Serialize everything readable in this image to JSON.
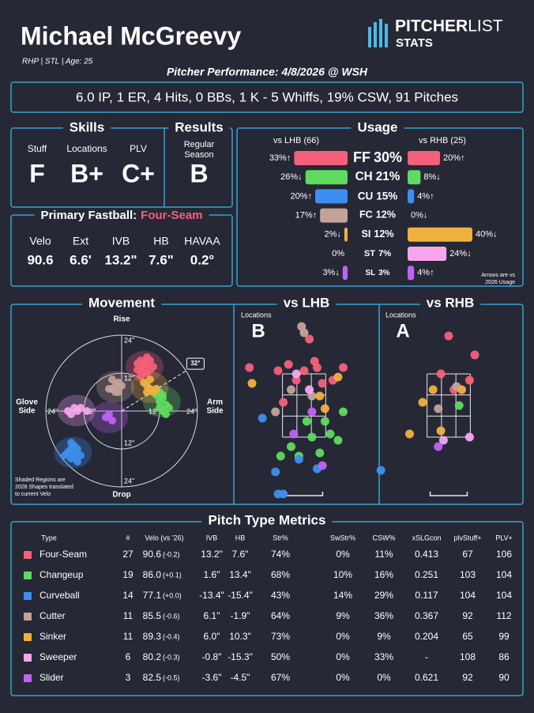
{
  "header": {
    "name": "Michael McGreevy",
    "bio": "RHP | STL | Age: 25",
    "logo_main": "PITCHER",
    "logo_light": "LIST",
    "logo_sub": "STATS"
  },
  "performance": {
    "title": "Pitcher Performance: 4/8/2026 @ WSH",
    "line": "6.0 IP, 1 ER, 4 Hits, 0 BBs, 1 K - 5 Whiffs, 19% CSW, 91 Pitches"
  },
  "skills": {
    "title": "Skills",
    "grades": [
      {
        "label": "Stuff",
        "grade": "F",
        "color": "#5ec8ee"
      },
      {
        "label": "Locations",
        "grade": "B+",
        "color": "#f4a0a8"
      },
      {
        "label": "PLV",
        "grade": "C+",
        "color": "#ffffff"
      }
    ]
  },
  "results": {
    "title": "Results",
    "label": [
      "Regular",
      "Season"
    ],
    "grade": "B",
    "color": "#f4a0a8"
  },
  "fastball": {
    "title": "Primary Fastball:",
    "pitch": "Four-Seam",
    "pitch_color": "#f4607a",
    "value_color": "#a8d8f0",
    "stats": [
      {
        "label": "Velo",
        "value": "90.6"
      },
      {
        "label": "Ext",
        "value": "6.6'"
      },
      {
        "label": "IVB",
        "value": "13.2\""
      },
      {
        "label": "HB",
        "value": "7.6\""
      },
      {
        "label": "HAVAA",
        "value": "0.2°"
      }
    ]
  },
  "usage": {
    "title": "Usage",
    "lhb_title": "vs LHB (66)",
    "rhb_title": "vs RHB (25)",
    "note": [
      "Arrows are vs",
      "2026 Usage"
    ],
    "rows": [
      {
        "abbr": "FF",
        "usage": 30,
        "usage_label": "30%",
        "lhb": 33,
        "lhb_label": "33%↑",
        "rhb": 20,
        "rhb_label": "20%↑"
      },
      {
        "abbr": "CH",
        "usage": 21,
        "usage_label": "21%",
        "lhb": 26,
        "lhb_label": "26%↓",
        "rhb": 8,
        "rhb_label": "8%↓"
      },
      {
        "abbr": "CU",
        "usage": 15,
        "usage_label": "15%",
        "lhb": 20,
        "lhb_label": "20%↑",
        "rhb": 4,
        "rhb_label": "4%↑"
      },
      {
        "abbr": "FC",
        "usage": 12,
        "usage_label": "12%",
        "lhb": 17,
        "lhb_label": "17%↑",
        "rhb": 0,
        "rhb_label": "0%↓"
      },
      {
        "abbr": "SI",
        "usage": 12,
        "usage_label": "12%",
        "lhb": 2,
        "lhb_label": "2%↓",
        "rhb": 40,
        "rhb_label": "40%↓"
      },
      {
        "abbr": "ST",
        "usage": 7,
        "usage_label": "7%",
        "lhb": 0,
        "lhb_label": "0%",
        "rhb": 24,
        "rhb_label": "24%↓"
      },
      {
        "abbr": "SL",
        "usage": 3,
        "usage_label": "3%",
        "lhb": 3,
        "lhb_label": "3%↓",
        "rhb": 4,
        "rhb_label": "4%↑"
      }
    ]
  },
  "movement": {
    "title": "Movement",
    "rise": "Rise",
    "drop": "Drop",
    "glove": [
      "Glove",
      "Side"
    ],
    "arm": [
      "Arm",
      "Side"
    ],
    "note": [
      "Shaded Regions are",
      "2026 Shapes translated",
      "to current Velo"
    ],
    "ticks": [
      {
        "value": 12,
        "label": "12\""
      },
      {
        "value": 24,
        "label": "24\""
      }
    ],
    "angle": {
      "value": 32,
      "label": "32°"
    },
    "points": [
      [
        [
          5,
          15
        ],
        [
          6,
          16
        ],
        [
          7,
          14
        ],
        [
          8,
          15
        ],
        [
          9,
          13
        ],
        [
          7,
          12
        ],
        [
          6,
          13
        ],
        [
          8,
          17
        ],
        [
          10,
          14
        ],
        [
          5,
          13
        ],
        [
          9,
          16
        ],
        [
          7,
          15
        ],
        [
          6,
          11
        ],
        [
          8,
          12
        ]
      ],
      [
        [
          11,
          7
        ],
        [
          12,
          6
        ],
        [
          13,
          4
        ],
        [
          14,
          2
        ],
        [
          12,
          3
        ],
        [
          13,
          0
        ],
        [
          15,
          1
        ],
        [
          14,
          -1
        ],
        [
          11,
          5
        ],
        [
          13,
          5
        ],
        [
          12,
          1
        ]
      ],
      [
        [
          -16,
          -12
        ],
        [
          -15,
          -14
        ],
        [
          -17,
          -13
        ],
        [
          -14,
          -12
        ],
        [
          -16,
          -15
        ],
        [
          -13,
          -14
        ],
        [
          -15,
          -11
        ],
        [
          -18,
          -14
        ],
        [
          -14,
          -16
        ],
        [
          -16,
          -10
        ]
      ],
      [
        [
          -2,
          8
        ],
        [
          -3,
          7
        ],
        [
          -1,
          9
        ],
        [
          -2,
          6
        ],
        [
          -4,
          7
        ],
        [
          -1,
          6
        ],
        [
          -3,
          10
        ],
        [
          0,
          8
        ]
      ],
      [
        [
          8,
          8
        ],
        [
          9,
          7
        ],
        [
          10,
          6
        ],
        [
          9,
          10
        ],
        [
          11,
          7
        ],
        [
          8,
          6
        ],
        [
          7,
          9
        ]
      ],
      [
        [
          -15,
          1
        ],
        [
          -14,
          0
        ],
        [
          -16,
          -1
        ],
        [
          -13,
          1
        ],
        [
          -11,
          0
        ],
        [
          -17,
          0
        ]
      ],
      [
        [
          -5,
          -2
        ],
        [
          -4,
          -1
        ],
        [
          -3,
          -3
        ]
      ]
    ]
  },
  "locations": {
    "lhb": {
      "title": "vs LHB",
      "label": "Locations",
      "grade": "B",
      "grade_color": "#f4a0a8",
      "points": [
        [
          [
            -0.6,
            3.8
          ],
          [
            0,
            3.6
          ],
          [
            0.4,
            3.9
          ],
          [
            -0.3,
            3.3
          ],
          [
            0.7,
            3.2
          ],
          [
            -1,
            3.6
          ],
          [
            0.2,
            4.6
          ],
          [
            -2.1,
            3.7
          ],
          [
            1.5,
            3.7
          ],
          [
            -0.8,
            2.6
          ],
          [
            0.5,
            3.7
          ],
          [
            1.1,
            3.3
          ]
        ],
        [
          [
            -0.5,
            1.2
          ],
          [
            0.3,
            1.5
          ],
          [
            0.6,
            1.0
          ],
          [
            -0.2,
            0.9
          ],
          [
            1.0,
            1.6
          ],
          [
            1.5,
            2.3
          ],
          [
            1.3,
            1.4
          ],
          [
            0.8,
            2.0
          ],
          [
            -0.9,
            0.9
          ],
          [
            0.1,
            2.0
          ]
        ],
        [
          [
            -1.1,
            0.4
          ],
          [
            -0.2,
            0.8
          ],
          [
            0.5,
            0.5
          ],
          [
            -1.0,
            -0.3
          ],
          [
            -0.8,
            -0.3
          ],
          [
            -1.6,
            2.1
          ]
        ],
        [
          [
            -0.1,
            5.0
          ],
          [
            0.0,
            4.8
          ],
          [
            -0.5,
            3.0
          ],
          [
            0.3,
            2.8
          ],
          [
            -1.1,
            2.3
          ]
        ],
        [
          [
            0.8,
            2.4
          ],
          [
            1.3,
            3.4
          ],
          [
            0.6,
            2.8
          ],
          [
            -2.0,
            3.2
          ]
        ],
        [
          [
            -0.3,
            3.5
          ],
          [
            0.2,
            3.0
          ]
        ],
        [
          [
            -0.4,
            1.6
          ],
          [
            0.3,
            2.3
          ],
          [
            0.7,
            0.6
          ]
        ]
      ]
    },
    "rhb": {
      "title": "vs RHB",
      "label": "Locations",
      "grade": "A",
      "grade_color": "#f4607a",
      "points": [
        [
          [
            0,
            4.7
          ],
          [
            1.0,
            4.1
          ],
          [
            -0.3,
            3.5
          ],
          [
            0.8,
            3.3
          ],
          [
            0.2,
            3.0
          ]
        ],
        [
          [
            0.4,
            2.5
          ]
        ],
        [
          [
            -2.6,
            0.45
          ]
        ],
        [
          [
            -0.4,
            2.4
          ],
          [
            0.3,
            3.1
          ]
        ],
        [
          [
            -0.6,
            3.0
          ],
          [
            -1.0,
            2.6
          ],
          [
            -1.5,
            1.6
          ],
          [
            -0.3,
            1.7
          ],
          [
            0.5,
            3.0
          ]
        ],
        [
          [
            -0.2,
            1.4
          ],
          [
            0.8,
            1.5
          ]
        ],
        [
          [
            -0.4,
            1.2
          ]
        ]
      ]
    }
  },
  "metrics": {
    "title": "Pitch Type Metrics",
    "columns": [
      "Type",
      "#",
      "Velo (vs '26)",
      "IVB",
      "HB",
      "Str%",
      "SwStr%",
      "CSW%",
      "xSLGcon",
      "plvStuff+",
      "PLV+"
    ],
    "rows": [
      {
        "type": "Four-Seam",
        "color": "#f4607a",
        "cells": [
          "27",
          "90.6",
          "(-0.2)",
          "13.2\"",
          "7.6\"",
          "74%",
          "0%",
          "11%",
          "0.413",
          "67",
          "106"
        ],
        "cell_colors": [
          "#ffffff",
          "#ffffff",
          "#5aa6f0",
          "#ffffff",
          "#ffffff",
          "#ffffff",
          "#4fc8e8",
          "#4fc8e8",
          "#ffffff",
          "#4fc8e8",
          "#f27a8a"
        ]
      },
      {
        "type": "Changeup",
        "color": "#5fdb5f",
        "cells": [
          "19",
          "86.0",
          "(+0.1)",
          "1.6\"",
          "13.4\"",
          "68%",
          "10%",
          "16%",
          "0.251",
          "103",
          "104"
        ],
        "cell_colors": [
          "#ffffff",
          "#ffffff",
          "#f27a8a",
          "#ffffff",
          "#ffffff",
          "#ffffff",
          "#4fc8e8",
          "#ffffff",
          "#f27a8a",
          "#4fc8e8",
          "#ffffff"
        ]
      },
      {
        "type": "Curveball",
        "color": "#3d8ef0",
        "cells": [
          "14",
          "77.1",
          "(+0.0)",
          "-13.4\"",
          "-15.4\"",
          "43%",
          "14%",
          "29%",
          "0.117",
          "104",
          "104"
        ],
        "cell_colors": [
          "#ffffff",
          "#ffffff",
          "#ffffff",
          "#ffffff",
          "#ffffff",
          "#ffffff",
          "#ffffff",
          "#ffffff",
          "#f27a8a",
          "#ffffff",
          "#ffffff"
        ]
      },
      {
        "type": "Cutter",
        "color": "#c4a29a",
        "cells": [
          "11",
          "85.5",
          "(-0.6)",
          "6.1\"",
          "-1.9\"",
          "64%",
          "9%",
          "36%",
          "0.367",
          "92",
          "112"
        ],
        "cell_colors": [
          "#ffffff",
          "#ffffff",
          "#5aa6f0",
          "#ffffff",
          "#ffffff",
          "#ffffff",
          "#ffffff",
          "#f27a8a",
          "#ffffff",
          "#4fc8e8",
          "#f27a8a"
        ]
      },
      {
        "type": "Sinker",
        "color": "#f0b13f",
        "cells": [
          "11",
          "89.3",
          "(-0.4)",
          "6.0\"",
          "10.3\"",
          "73%",
          "0%",
          "9%",
          "0.204",
          "65",
          "99"
        ],
        "cell_colors": [
          "#ffffff",
          "#ffffff",
          "#5aa6f0",
          "#ffffff",
          "#ffffff",
          "#ffffff",
          "#4fc8e8",
          "#4fc8e8",
          "#f27a8a",
          "#4fc8e8",
          "#ffffff"
        ]
      },
      {
        "type": "Sweeper",
        "color": "#f7a6ee",
        "cells": [
          "6",
          "80.2",
          "(-0.3)",
          "-0.8\"",
          "-15.3\"",
          "50%",
          "0%",
          "33%",
          "-",
          "108",
          "86"
        ],
        "cell_colors": [
          "#ffffff",
          "#ffffff",
          "#5aa6f0",
          "#ffffff",
          "#ffffff",
          "#ffffff",
          "#4fc8e8",
          "#ffffff",
          "#ffffff",
          "#4fc8e8",
          "#4fc8e8"
        ]
      },
      {
        "type": "Slider",
        "color": "#c063f5",
        "cells": [
          "3",
          "82.5",
          "(-0.5)",
          "-3.6\"",
          "-4.5\"",
          "67%",
          "0%",
          "0%",
          "0.621",
          "92",
          "90"
        ],
        "cell_colors": [
          "#ffffff",
          "#ffffff",
          "#5aa6f0",
          "#ffffff",
          "#ffffff",
          "#ffffff",
          "#4fc8e8",
          "#4fc8e8",
          "#ffffff",
          "#4fc8e8",
          "#4fc8e8"
        ]
      }
    ]
  }
}
